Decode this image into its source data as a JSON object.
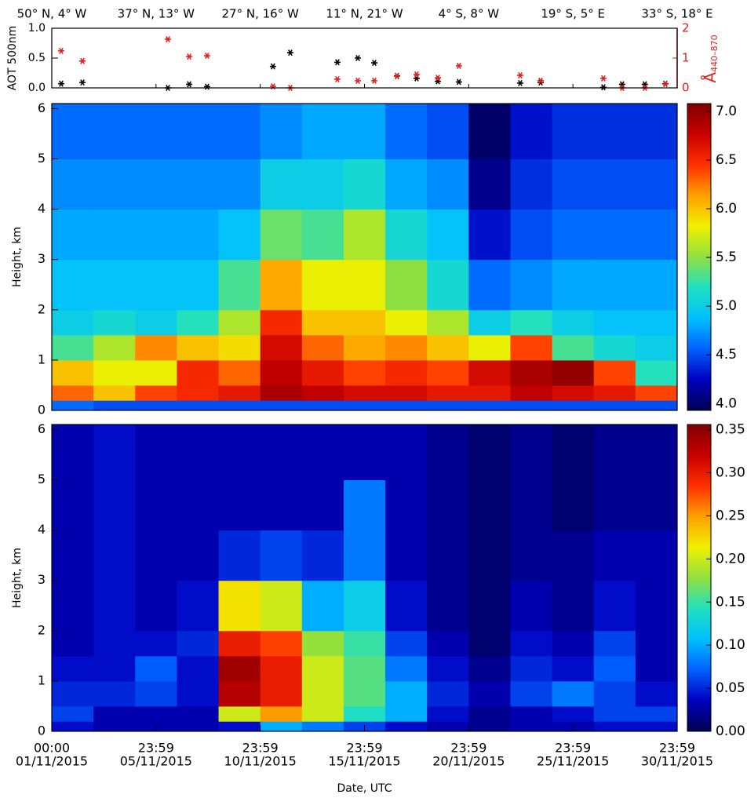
{
  "chart_data": [
    {
      "type": "scatter",
      "ylabel": "AOT 500nm",
      "y2label_symbol": "Å",
      "y2label_sub": "440–870",
      "xlim": [
        0,
        30
      ],
      "xticks": [
        {
          "value": 0,
          "label": "50° N, 4° W"
        },
        {
          "value": 5,
          "label": "37° N, 13° W"
        },
        {
          "value": 10,
          "label": "27° N, 16° W"
        },
        {
          "value": 15,
          "label": "11° N, 21° W"
        },
        {
          "value": 20,
          "label": "4° S, 8° W"
        },
        {
          "value": 25,
          "label": "19° S, 5° E"
        },
        {
          "value": 30,
          "label": "33° S, 18° E"
        }
      ],
      "ylim": [
        0,
        1
      ],
      "yticks": [
        {
          "value": 0,
          "label": "0.0"
        },
        {
          "value": 0.5,
          "label": "0.5"
        },
        {
          "value": 1,
          "label": "1.0"
        }
      ],
      "y2lim": [
        0,
        2
      ],
      "y2ticks": [
        0,
        1,
        2
      ],
      "series": [
        {
          "color": "#000000",
          "x": [
            0.45,
            1.47,
            5.57,
            6.59,
            7.45,
            10.61,
            11.44,
            13.7,
            14.68,
            15.47,
            16.56,
            17.5,
            18.52,
            19.53,
            22.47,
            23.45,
            26.46,
            27.36,
            28.45,
            29.43
          ],
          "values": [
            0.07,
            0.09,
            0,
            0.06,
            0.02,
            0.36,
            0.59,
            0.43,
            0.5,
            0.42,
            0.2,
            0.16,
            0.11,
            0.1,
            0.08,
            0.09,
            0.01,
            0.06,
            0.06,
            0.07
          ]
        },
        {
          "color": "#e0201c",
          "axis": "y2",
          "x": [
            0.45,
            1.47,
            5.57,
            6.59,
            7.45,
            10.61,
            11.44,
            13.7,
            14.68,
            15.47,
            16.56,
            17.5,
            18.52,
            19.53,
            22.47,
            23.45,
            26.46,
            27.36,
            28.45,
            29.43
          ],
          "values": [
            1.24,
            0.9,
            1.63,
            1.05,
            1.08,
            0.05,
            0,
            0.29,
            0.24,
            0.24,
            0.39,
            0.45,
            0.34,
            0.74,
            0.42,
            0.24,
            0.32,
            0,
            0,
            0.13
          ]
        }
      ]
    },
    {
      "type": "heatmap",
      "ylabel": "Height, km",
      "xlim": [
        0,
        30
      ],
      "ylim": [
        0,
        6.1
      ],
      "yticks": [
        0,
        1,
        2,
        3,
        4,
        5,
        6
      ],
      "x_edges": [
        0,
        2,
        4,
        6,
        8,
        10,
        12,
        14,
        16,
        18,
        20,
        22,
        24,
        26,
        28,
        30
      ],
      "y_edges": [
        0,
        0.2,
        0.5,
        1,
        1.5,
        2,
        3,
        4,
        5,
        6.1
      ],
      "clim": [
        3.93,
        7.08
      ],
      "cticks": [
        {
          "value": 4,
          "label": "4.0"
        },
        {
          "value": 4.5,
          "label": "4.5"
        },
        {
          "value": 5,
          "label": "5.0"
        },
        {
          "value": 5.5,
          "label": "5.5"
        },
        {
          "value": 6,
          "label": "6.0"
        },
        {
          "value": 6.5,
          "label": "6.5"
        },
        {
          "value": 7,
          "label": "7.0"
        }
      ],
      "colorscale": [
        "#000050",
        "#0000c0",
        "#0060ff",
        "#00c0ff",
        "#20e0c0",
        "#90e040",
        "#f0f000",
        "#ffa000",
        "#ff3000",
        "#c80000",
        "#800000"
      ],
      "z": [
        [
          4.6,
          4.5,
          4.5,
          4.5,
          4.5,
          4.5,
          4.5,
          4.5,
          4.5,
          4.5,
          4.5,
          4.5,
          4.5,
          4.5,
          4.5
        ],
        [
          6.3,
          6.0,
          6.4,
          6.5,
          6.6,
          6.9,
          6.8,
          6.7,
          6.7,
          6.6,
          6.6,
          6.8,
          6.7,
          6.6,
          6.4
        ],
        [
          6.0,
          5.8,
          5.8,
          6.5,
          6.3,
          6.8,
          6.6,
          6.4,
          6.5,
          6.4,
          6.7,
          6.9,
          7.0,
          6.4,
          5.2
        ],
        [
          5.3,
          5.6,
          6.2,
          6.0,
          5.9,
          6.7,
          6.3,
          6.1,
          6.2,
          6.0,
          5.8,
          6.4,
          5.3,
          5.1,
          5.0
        ],
        [
          5.0,
          5.1,
          5.0,
          5.2,
          5.6,
          6.5,
          6.0,
          6.0,
          5.8,
          5.6,
          5.0,
          5.2,
          5.0,
          4.9,
          4.9
        ],
        [
          4.9,
          4.9,
          4.9,
          4.9,
          5.3,
          6.1,
          5.8,
          5.8,
          5.5,
          5.1,
          4.6,
          4.7,
          4.8,
          4.8,
          4.8
        ],
        [
          4.8,
          4.8,
          4.8,
          4.8,
          4.9,
          5.4,
          5.3,
          5.6,
          5.1,
          4.9,
          4.3,
          4.5,
          4.6,
          4.6,
          4.6
        ],
        [
          4.7,
          4.7,
          4.7,
          4.7,
          4.7,
          5.0,
          5.0,
          5.1,
          4.8,
          4.7,
          4.1,
          4.4,
          4.5,
          4.5,
          4.5
        ],
        [
          4.6,
          4.6,
          4.6,
          4.6,
          4.6,
          4.7,
          4.8,
          4.8,
          4.6,
          4.5,
          4.0,
          4.3,
          4.4,
          4.4,
          4.4
        ]
      ]
    },
    {
      "type": "heatmap",
      "ylabel": "Height, km",
      "xlabel": "Date, UTC",
      "xlim": [
        0,
        30
      ],
      "xticks": [
        {
          "value": 0,
          "label": [
            "00:00",
            "01/11/2015"
          ]
        },
        {
          "value": 5,
          "label": [
            "23:59",
            "05/11/2015"
          ]
        },
        {
          "value": 10,
          "label": [
            "23:59",
            "10/11/2015"
          ]
        },
        {
          "value": 15,
          "label": [
            "23:59",
            "15/11/2015"
          ]
        },
        {
          "value": 20,
          "label": [
            "23:59",
            "20/11/2015"
          ]
        },
        {
          "value": 25,
          "label": [
            "23:59",
            "25/11/2015"
          ]
        },
        {
          "value": 30,
          "label": [
            "23:59",
            "30/11/2015"
          ]
        }
      ],
      "ylim": [
        0,
        6.1
      ],
      "yticks": [
        0,
        1,
        2,
        3,
        4,
        5,
        6
      ],
      "x_edges": [
        0,
        2,
        4,
        6,
        8,
        10,
        12,
        14,
        16,
        18,
        20,
        22,
        24,
        26,
        28,
        30
      ],
      "y_edges": [
        0,
        0.2,
        0.5,
        1,
        1.5,
        2,
        3,
        4,
        5,
        6.1
      ],
      "clim": [
        0,
        0.356
      ],
      "cticks": [
        {
          "value": 0,
          "label": "0.00"
        },
        {
          "value": 0.05,
          "label": "0.05"
        },
        {
          "value": 0.1,
          "label": "0.10"
        },
        {
          "value": 0.15,
          "label": "0.15"
        },
        {
          "value": 0.2,
          "label": "0.20"
        },
        {
          "value": 0.25,
          "label": "0.25"
        },
        {
          "value": 0.3,
          "label": "0.30"
        },
        {
          "value": 0.35,
          "label": "0.35"
        }
      ],
      "colorscale": [
        "#000050",
        "#0000c0",
        "#0060ff",
        "#00c0ff",
        "#20e0c0",
        "#90e040",
        "#f0f000",
        "#ffa000",
        "#ff3000",
        "#c80000",
        "#800000"
      ],
      "z": [
        [
          0.04,
          0.03,
          0.03,
          0.03,
          0.04,
          0.1,
          0.08,
          0.06,
          0.04,
          0.03,
          0.02,
          0.03,
          0.03,
          0.04,
          0.04
        ],
        [
          0.06,
          0.03,
          0.03,
          0.03,
          0.2,
          0.25,
          0.2,
          0.14,
          0.1,
          0.04,
          0.02,
          0.03,
          0.04,
          0.06,
          0.06
        ],
        [
          0.05,
          0.05,
          0.06,
          0.04,
          0.33,
          0.3,
          0.2,
          0.16,
          0.1,
          0.05,
          0.03,
          0.06,
          0.08,
          0.06,
          0.04
        ],
        [
          0.04,
          0.04,
          0.07,
          0.04,
          0.34,
          0.3,
          0.2,
          0.16,
          0.08,
          0.04,
          0.02,
          0.05,
          0.04,
          0.07,
          0.03
        ],
        [
          0.03,
          0.04,
          0.04,
          0.05,
          0.3,
          0.28,
          0.18,
          0.15,
          0.06,
          0.03,
          0.01,
          0.04,
          0.03,
          0.06,
          0.03
        ],
        [
          0.03,
          0.04,
          0.03,
          0.04,
          0.22,
          0.2,
          0.1,
          0.12,
          0.04,
          0.02,
          0.01,
          0.03,
          0.02,
          0.04,
          0.03
        ],
        [
          0.03,
          0.04,
          0.03,
          0.03,
          0.05,
          0.06,
          0.05,
          0.08,
          0.03,
          0.02,
          0.01,
          0.02,
          0.02,
          0.03,
          0.03
        ],
        [
          0.03,
          0.04,
          0.03,
          0.03,
          0.03,
          0.03,
          0.03,
          0.08,
          0.03,
          0.02,
          0.01,
          0.02,
          0.01,
          0.02,
          0.02
        ],
        [
          0.03,
          0.04,
          0.03,
          0.03,
          0.03,
          0.03,
          0.03,
          0.03,
          0.03,
          0.02,
          0.01,
          0.02,
          0.01,
          0.02,
          0.02
        ]
      ]
    }
  ]
}
